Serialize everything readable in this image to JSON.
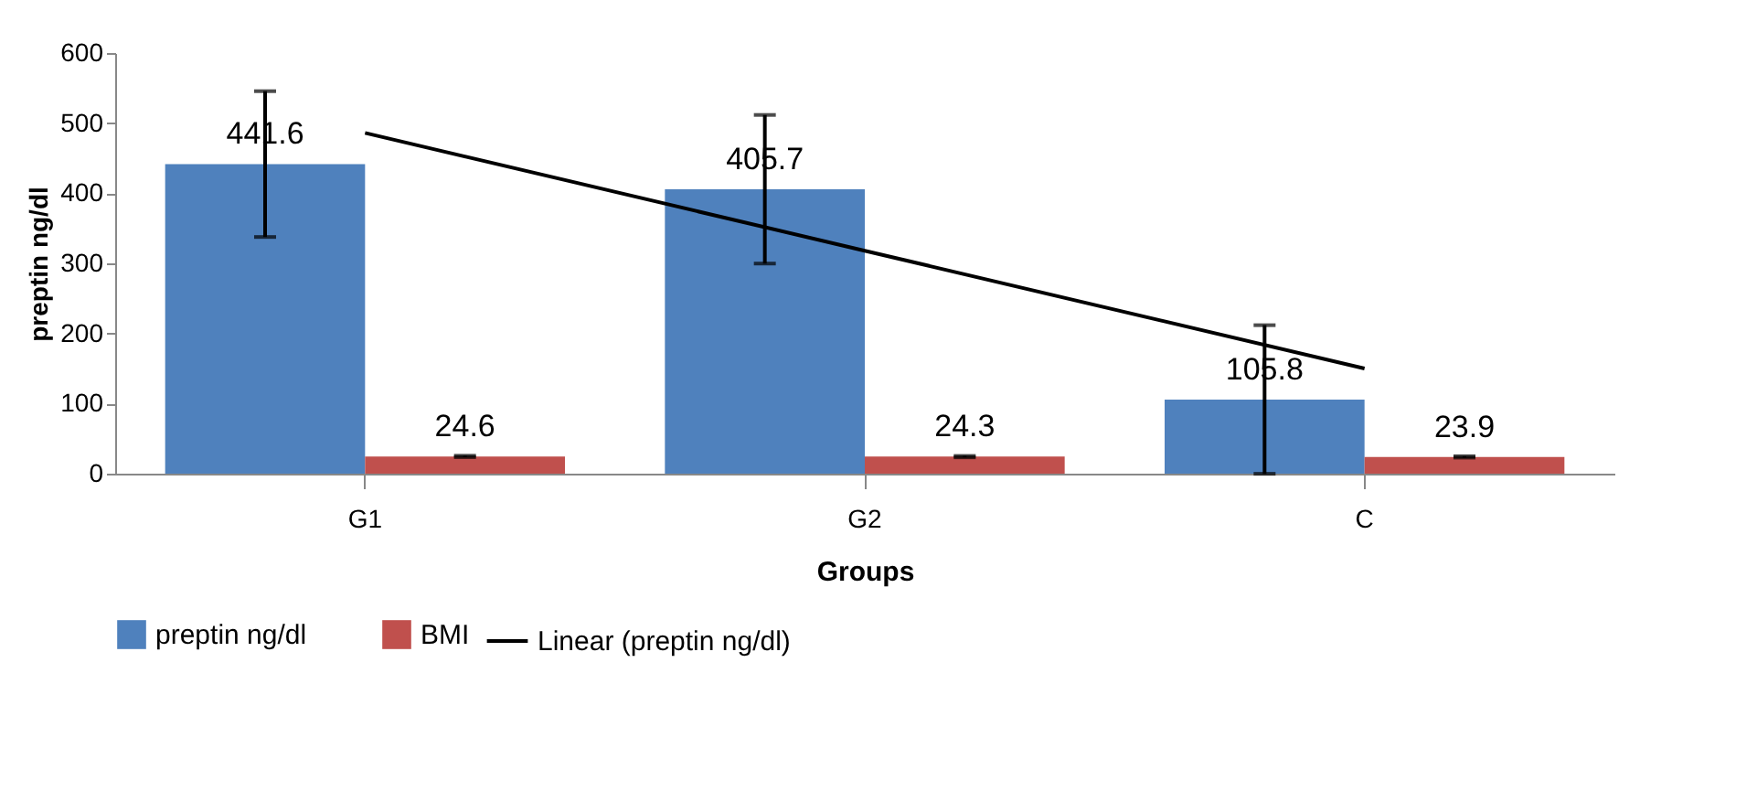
{
  "chart_data": {
    "type": "bar",
    "xlabel": "Groups",
    "ylabel": "preptin ng/dl",
    "categories": [
      "G1",
      "G2",
      "C"
    ],
    "series": [
      {
        "name": "preptin ng/dl",
        "color": "#4f81bd",
        "values": [
          441.6,
          405.7,
          105.8
        ],
        "errors": [
          104,
          106,
          106
        ],
        "value_labels": [
          "441.6",
          "405.7",
          "105.8"
        ]
      },
      {
        "name": "BMI",
        "color": "#c0504d",
        "values": [
          24.6,
          24.3,
          23.9
        ],
        "errors": [
          1,
          1,
          1
        ],
        "value_labels": [
          "24.6",
          "24.3",
          "23.9"
        ]
      },
      {
        "name": "Linear (preptin ng/dl)",
        "type": "line",
        "color": "#000000",
        "values": [
          486,
          318,
          150
        ]
      }
    ],
    "ylim": [
      0,
      600
    ],
    "yticks": [
      0,
      100,
      200,
      300,
      400,
      500,
      600
    ],
    "grid": false,
    "legend": "bottom"
  }
}
